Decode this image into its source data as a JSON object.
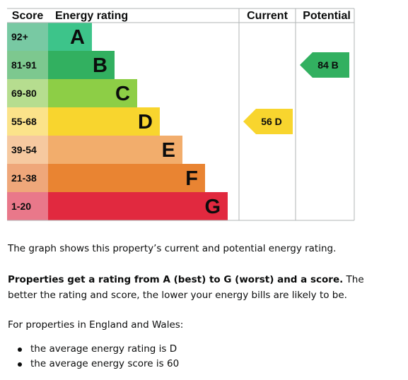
{
  "chart_data": {
    "type": "table",
    "columns": {
      "score": "Score",
      "rating": "Energy rating",
      "current": "Current",
      "potential": "Potential"
    },
    "bands": [
      {
        "score": "92+",
        "letter": "A",
        "color": "#3dc48a",
        "score_bg": "#78c9a3"
      },
      {
        "score": "81-91",
        "letter": "B",
        "color": "#32b060",
        "score_bg": "#7dc88f"
      },
      {
        "score": "69-80",
        "letter": "C",
        "color": "#8dce46",
        "score_bg": "#b6dd8f"
      },
      {
        "score": "55-68",
        "letter": "D",
        "color": "#f8d52e",
        "score_bg": "#fbe38a"
      },
      {
        "score": "39-54",
        "letter": "E",
        "color": "#f2ad6c",
        "score_bg": "#f6c9a0"
      },
      {
        "score": "21-38",
        "letter": "F",
        "color": "#e98432",
        "score_bg": "#efa77a"
      },
      {
        "score": "1-20",
        "letter": "G",
        "color": "#e1293f",
        "score_bg": "#e9788a"
      }
    ],
    "current": {
      "value": 56,
      "band": "D",
      "label": "56 D",
      "color": "#f8d52e"
    },
    "potential": {
      "value": 84,
      "band": "B",
      "label": "84 B",
      "color": "#32b060"
    }
  },
  "text": {
    "graph_description": "The graph shows this property’s current and potential energy rating.",
    "rating_intro_bold": "Properties get a rating from A (best) to G (worst) and a score.",
    "rating_intro_rest": " The better the rating and score, the lower your energy bills are likely to be.",
    "region_intro": "For properties in England and Wales:",
    "bullets": [
      "the average energy rating is D",
      "the average energy score is 60"
    ]
  }
}
